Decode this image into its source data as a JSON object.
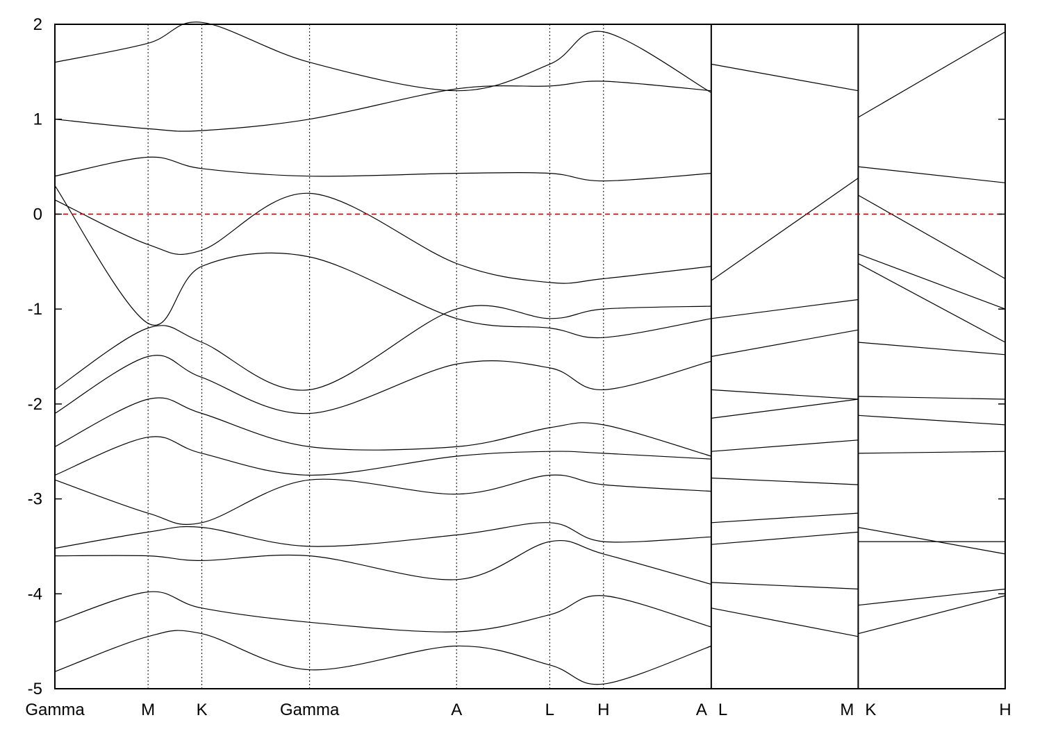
{
  "chart_data": {
    "type": "line",
    "title": "",
    "xlabel": "",
    "ylabel": "",
    "ylim": [
      -5,
      2
    ],
    "y_ticks": [
      -5,
      -4,
      -3,
      -2,
      -1,
      0,
      1,
      2
    ],
    "y_tick_labels": [
      "-5",
      "-4",
      "-3",
      "-2",
      "-1",
      "0",
      "1",
      "2"
    ],
    "k_points": [
      {
        "label": "Gamma",
        "k": 0.0
      },
      {
        "label": "M",
        "k": 0.577
      },
      {
        "label": "K",
        "k": 0.91
      },
      {
        "label": "Gamma",
        "k": 1.577
      },
      {
        "label": "A",
        "k": 2.487
      },
      {
        "label": "L",
        "k": 3.064
      },
      {
        "label": "H",
        "k": 3.397
      },
      {
        "label": "A",
        "k": 4.064
      },
      {
        "label": "L",
        "k": 4.064
      },
      {
        "label": "M",
        "k": 4.974
      },
      {
        "label": "K",
        "k": 4.974
      },
      {
        "label": "H",
        "k": 5.884
      }
    ],
    "segment_breaks": [
      4.064,
      4.974
    ],
    "fermi_level": 0,
    "fermi_color": "#d40000",
    "band_color": "#000000",
    "grid": false,
    "series": [
      {
        "k": [
          0.0,
          0.577,
          0.91,
          1.577,
          2.487,
          3.064,
          3.397,
          4.064
        ],
        "energy": [
          1.6,
          1.8,
          2.02,
          1.6,
          1.3,
          1.58,
          1.92,
          1.28
        ]
      },
      {
        "k": [
          0.0,
          0.577,
          0.91,
          1.577,
          2.487,
          3.064,
          3.397,
          4.064
        ],
        "energy": [
          1.0,
          0.9,
          0.88,
          1.0,
          1.32,
          1.35,
          1.4,
          1.3
        ]
      },
      {
        "k": [
          0.0,
          0.577,
          0.91,
          1.577,
          2.487,
          3.064,
          3.397,
          4.064
        ],
        "energy": [
          0.4,
          0.6,
          0.48,
          0.4,
          0.43,
          0.43,
          0.35,
          0.43
        ]
      },
      {
        "k": [
          0.0,
          0.577,
          0.91,
          1.577,
          2.487,
          3.064,
          3.397,
          4.064
        ],
        "energy": [
          0.15,
          -0.32,
          -0.38,
          0.22,
          -0.52,
          -0.72,
          -0.68,
          -0.55
        ]
      },
      {
        "k": [
          0.0,
          0.577,
          0.91,
          1.577,
          2.487,
          3.064,
          3.397,
          4.064
        ],
        "energy": [
          0.3,
          -1.15,
          -0.55,
          -0.45,
          -1.1,
          -1.2,
          -1.3,
          -1.1
        ]
      },
      {
        "k": [
          0.0,
          0.577,
          0.91,
          1.577,
          2.487,
          3.064,
          3.397,
          4.064
        ],
        "energy": [
          -1.85,
          -1.2,
          -1.35,
          -1.85,
          -1.0,
          -1.1,
          -1.0,
          -0.97
        ]
      },
      {
        "k": [
          0.0,
          0.577,
          0.91,
          1.577,
          2.487,
          3.064,
          3.397,
          4.064
        ],
        "energy": [
          -2.1,
          -1.5,
          -1.72,
          -2.1,
          -1.58,
          -1.62,
          -1.85,
          -1.55
        ]
      },
      {
        "k": [
          0.0,
          0.577,
          0.91,
          1.577,
          2.487,
          3.064,
          3.397,
          4.064
        ],
        "energy": [
          -2.45,
          -1.95,
          -2.1,
          -2.45,
          -2.45,
          -2.25,
          -2.22,
          -2.55
        ]
      },
      {
        "k": [
          0.0,
          0.577,
          0.91,
          1.577,
          2.487,
          3.064,
          3.397,
          4.064
        ],
        "energy": [
          -2.75,
          -2.35,
          -2.52,
          -2.75,
          -2.55,
          -2.5,
          -2.52,
          -2.58
        ]
      },
      {
        "k": [
          0.0,
          0.577,
          0.91,
          1.577,
          2.487,
          3.064,
          3.397,
          4.064
        ],
        "energy": [
          -2.8,
          -3.15,
          -3.25,
          -2.8,
          -2.95,
          -2.75,
          -2.85,
          -2.92
        ]
      },
      {
        "k": [
          0.0,
          0.577,
          0.91,
          1.577,
          2.487,
          3.064,
          3.397,
          4.064
        ],
        "energy": [
          -3.52,
          -3.35,
          -3.3,
          -3.5,
          -3.38,
          -3.25,
          -3.45,
          -3.4
        ]
      },
      {
        "k": [
          0.0,
          0.577,
          0.91,
          1.577,
          2.487,
          3.064,
          3.397,
          4.064
        ],
        "energy": [
          -3.6,
          -3.6,
          -3.65,
          -3.6,
          -3.85,
          -3.45,
          -3.58,
          -3.9
        ]
      },
      {
        "k": [
          0.0,
          0.577,
          0.91,
          1.577,
          2.487,
          3.064,
          3.397,
          4.064
        ],
        "energy": [
          -4.3,
          -3.98,
          -4.15,
          -4.3,
          -4.4,
          -4.22,
          -4.02,
          -4.35
        ]
      },
      {
        "k": [
          0.0,
          0.577,
          0.91,
          1.577,
          2.487,
          3.064,
          3.397,
          4.064
        ],
        "energy": [
          -4.82,
          -4.45,
          -4.42,
          -4.8,
          -4.55,
          -4.75,
          -4.95,
          -4.55
        ]
      },
      {
        "k": [
          4.064,
          4.974
        ],
        "energy": [
          1.58,
          1.3
        ]
      },
      {
        "k": [
          4.064,
          4.974
        ],
        "energy": [
          -0.7,
          0.38
        ]
      },
      {
        "k": [
          4.064,
          4.974
        ],
        "energy": [
          -1.1,
          -0.9
        ]
      },
      {
        "k": [
          4.064,
          4.974
        ],
        "energy": [
          -1.5,
          -1.22
        ]
      },
      {
        "k": [
          4.064,
          4.974
        ],
        "energy": [
          -1.85,
          -1.95
        ]
      },
      {
        "k": [
          4.064,
          4.974
        ],
        "energy": [
          -2.15,
          -1.95
        ]
      },
      {
        "k": [
          4.064,
          4.974
        ],
        "energy": [
          -2.5,
          -2.38
        ]
      },
      {
        "k": [
          4.064,
          4.974
        ],
        "energy": [
          -2.78,
          -2.85
        ]
      },
      {
        "k": [
          4.064,
          4.974
        ],
        "energy": [
          -3.25,
          -3.15
        ]
      },
      {
        "k": [
          4.064,
          4.974
        ],
        "energy": [
          -3.48,
          -3.35
        ]
      },
      {
        "k": [
          4.064,
          4.974
        ],
        "energy": [
          -3.88,
          -3.95
        ]
      },
      {
        "k": [
          4.064,
          4.974
        ],
        "energy": [
          -4.15,
          -4.45
        ]
      },
      {
        "k": [
          4.974,
          5.884
        ],
        "energy": [
          1.02,
          1.92
        ]
      },
      {
        "k": [
          4.974,
          5.884
        ],
        "energy": [
          0.5,
          0.33
        ]
      },
      {
        "k": [
          4.974,
          5.884
        ],
        "energy": [
          0.2,
          -0.68
        ]
      },
      {
        "k": [
          4.974,
          5.884
        ],
        "energy": [
          -0.42,
          -1.0
        ]
      },
      {
        "k": [
          4.974,
          5.884
        ],
        "energy": [
          -0.52,
          -1.35
        ]
      },
      {
        "k": [
          4.974,
          5.884
        ],
        "energy": [
          -1.35,
          -1.48
        ]
      },
      {
        "k": [
          4.974,
          5.884
        ],
        "energy": [
          -1.92,
          -1.95
        ]
      },
      {
        "k": [
          4.974,
          5.884
        ],
        "energy": [
          -2.12,
          -2.22
        ]
      },
      {
        "k": [
          4.974,
          5.884
        ],
        "energy": [
          -2.52,
          -2.5
        ]
      },
      {
        "k": [
          4.974,
          5.884
        ],
        "energy": [
          -3.3,
          -3.58
        ]
      },
      {
        "k": [
          4.974,
          5.884
        ],
        "energy": [
          -3.45,
          -3.45
        ]
      },
      {
        "k": [
          4.974,
          5.884
        ],
        "energy": [
          -4.12,
          -3.95
        ]
      },
      {
        "k": [
          4.974,
          5.884
        ],
        "energy": [
          -4.42,
          -4.02
        ]
      }
    ]
  }
}
